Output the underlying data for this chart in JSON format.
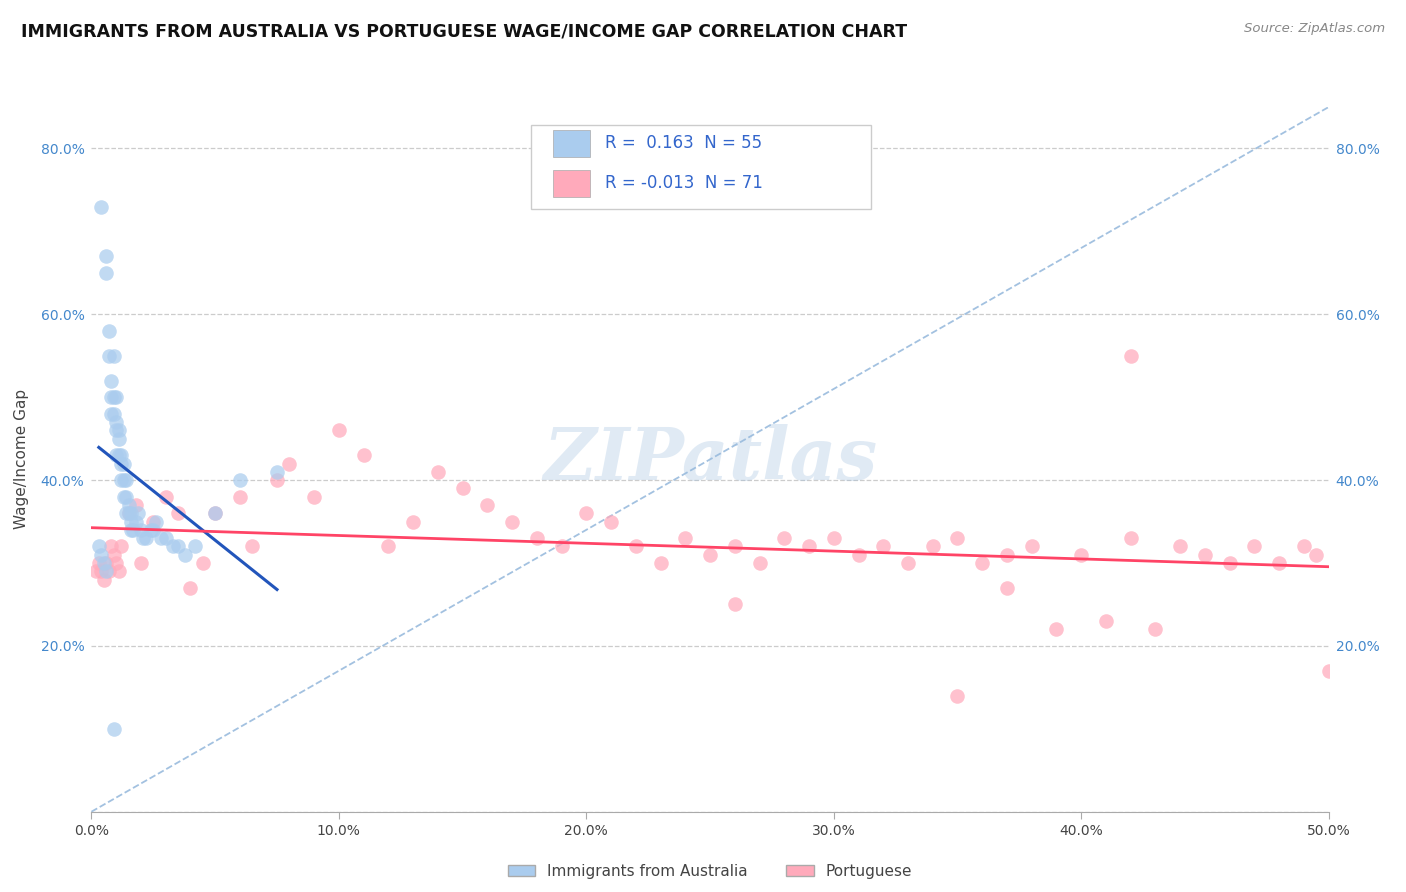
{
  "title": "IMMIGRANTS FROM AUSTRALIA VS PORTUGUESE WAGE/INCOME GAP CORRELATION CHART",
  "source": "Source: ZipAtlas.com",
  "ylabel": "Wage/Income Gap",
  "legend1_R": "0.163",
  "legend1_N": "55",
  "legend2_R": "-0.013",
  "legend2_N": "71",
  "blue_color": "#aaccee",
  "pink_color": "#ffaabb",
  "blue_line_color": "#2255bb",
  "pink_line_color": "#ff4466",
  "dashed_line_color": "#99bbdd",
  "watermark_text": "ZIPatlas",
  "xlim": [
    0.0,
    0.5
  ],
  "ylim": [
    0.0,
    0.85
  ],
  "y_ticks": [
    0.0,
    0.2,
    0.4,
    0.6,
    0.8
  ],
  "y_tick_labels": [
    "",
    "20.0%",
    "40.0%",
    "60.0%",
    "80.0%"
  ],
  "x_ticks": [
    0.0,
    0.1,
    0.2,
    0.3,
    0.4,
    0.5
  ],
  "x_tick_labels": [
    "0.0%",
    "10.0%",
    "20.0%",
    "30.0%",
    "40.0%",
    "50.0%"
  ],
  "blue_x": [
    0.004,
    0.006,
    0.006,
    0.007,
    0.007,
    0.008,
    0.008,
    0.008,
    0.009,
    0.009,
    0.009,
    0.01,
    0.01,
    0.01,
    0.01,
    0.011,
    0.011,
    0.011,
    0.012,
    0.012,
    0.012,
    0.013,
    0.013,
    0.013,
    0.014,
    0.014,
    0.014,
    0.015,
    0.015,
    0.016,
    0.016,
    0.016,
    0.017,
    0.018,
    0.019,
    0.02,
    0.021,
    0.022,
    0.024,
    0.025,
    0.026,
    0.028,
    0.03,
    0.033,
    0.035,
    0.038,
    0.042,
    0.05,
    0.06,
    0.075,
    0.003,
    0.004,
    0.005,
    0.006,
    0.009
  ],
  "blue_y": [
    0.73,
    0.67,
    0.65,
    0.58,
    0.55,
    0.48,
    0.5,
    0.52,
    0.55,
    0.48,
    0.5,
    0.43,
    0.46,
    0.5,
    0.47,
    0.45,
    0.43,
    0.46,
    0.42,
    0.43,
    0.4,
    0.4,
    0.42,
    0.38,
    0.38,
    0.4,
    0.36,
    0.36,
    0.37,
    0.36,
    0.34,
    0.35,
    0.34,
    0.35,
    0.36,
    0.34,
    0.33,
    0.33,
    0.34,
    0.34,
    0.35,
    0.33,
    0.33,
    0.32,
    0.32,
    0.31,
    0.32,
    0.36,
    0.4,
    0.41,
    0.32,
    0.31,
    0.3,
    0.29,
    0.1
  ],
  "pink_x": [
    0.002,
    0.003,
    0.004,
    0.005,
    0.006,
    0.007,
    0.008,
    0.009,
    0.01,
    0.011,
    0.012,
    0.015,
    0.018,
    0.02,
    0.025,
    0.03,
    0.035,
    0.04,
    0.045,
    0.05,
    0.06,
    0.065,
    0.075,
    0.08,
    0.09,
    0.1,
    0.11,
    0.12,
    0.13,
    0.14,
    0.15,
    0.16,
    0.17,
    0.18,
    0.19,
    0.2,
    0.21,
    0.22,
    0.23,
    0.24,
    0.25,
    0.26,
    0.27,
    0.28,
    0.29,
    0.3,
    0.31,
    0.32,
    0.33,
    0.34,
    0.35,
    0.36,
    0.37,
    0.38,
    0.39,
    0.4,
    0.41,
    0.42,
    0.43,
    0.44,
    0.45,
    0.46,
    0.47,
    0.48,
    0.49,
    0.495,
    0.5,
    0.42,
    0.37,
    0.35,
    0.26
  ],
  "pink_y": [
    0.29,
    0.3,
    0.29,
    0.28,
    0.3,
    0.29,
    0.32,
    0.31,
    0.3,
    0.29,
    0.32,
    0.36,
    0.37,
    0.3,
    0.35,
    0.38,
    0.36,
    0.27,
    0.3,
    0.36,
    0.38,
    0.32,
    0.4,
    0.42,
    0.38,
    0.46,
    0.43,
    0.32,
    0.35,
    0.41,
    0.39,
    0.37,
    0.35,
    0.33,
    0.32,
    0.36,
    0.35,
    0.32,
    0.3,
    0.33,
    0.31,
    0.32,
    0.3,
    0.33,
    0.32,
    0.33,
    0.31,
    0.32,
    0.3,
    0.32,
    0.33,
    0.3,
    0.31,
    0.32,
    0.22,
    0.31,
    0.23,
    0.33,
    0.22,
    0.32,
    0.31,
    0.3,
    0.32,
    0.3,
    0.32,
    0.31,
    0.17,
    0.55,
    0.27,
    0.14,
    0.25
  ]
}
